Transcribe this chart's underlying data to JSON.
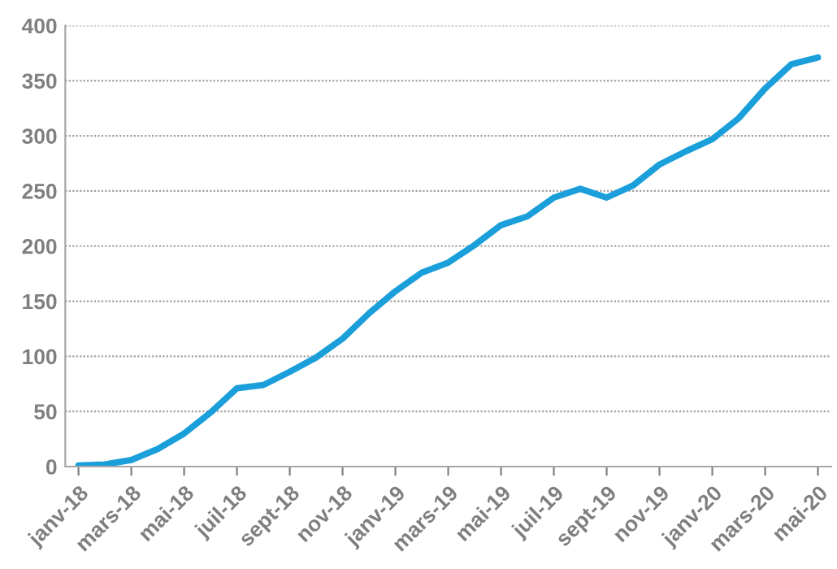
{
  "chart_data": {
    "type": "line",
    "categories": [
      "janv-18",
      null,
      "mars-18",
      null,
      "mai-18",
      null,
      "juil-18",
      null,
      "sept-18",
      null,
      "nov-18",
      null,
      "janv-19",
      null,
      "mars-19",
      null,
      "mai-19",
      null,
      "juil-19",
      null,
      "sept-19",
      null,
      "nov-19",
      null,
      "janv-20",
      null,
      "mars-20",
      null,
      "mai-20"
    ],
    "series": [
      {
        "color": "#1a9fdb",
        "values": [
          1,
          2,
          6,
          16,
          30,
          49,
          71,
          74,
          86,
          99,
          116,
          139,
          159,
          176,
          185,
          201,
          219,
          227,
          244,
          252,
          244,
          255,
          274,
          286,
          297,
          316,
          343,
          365,
          371
        ]
      }
    ],
    "ylim": [
      0,
      400
    ],
    "yticks": [
      0,
      50,
      100,
      150,
      200,
      250,
      300,
      350,
      400
    ],
    "grid": "y",
    "marker": "none",
    "line_style": "solid"
  }
}
